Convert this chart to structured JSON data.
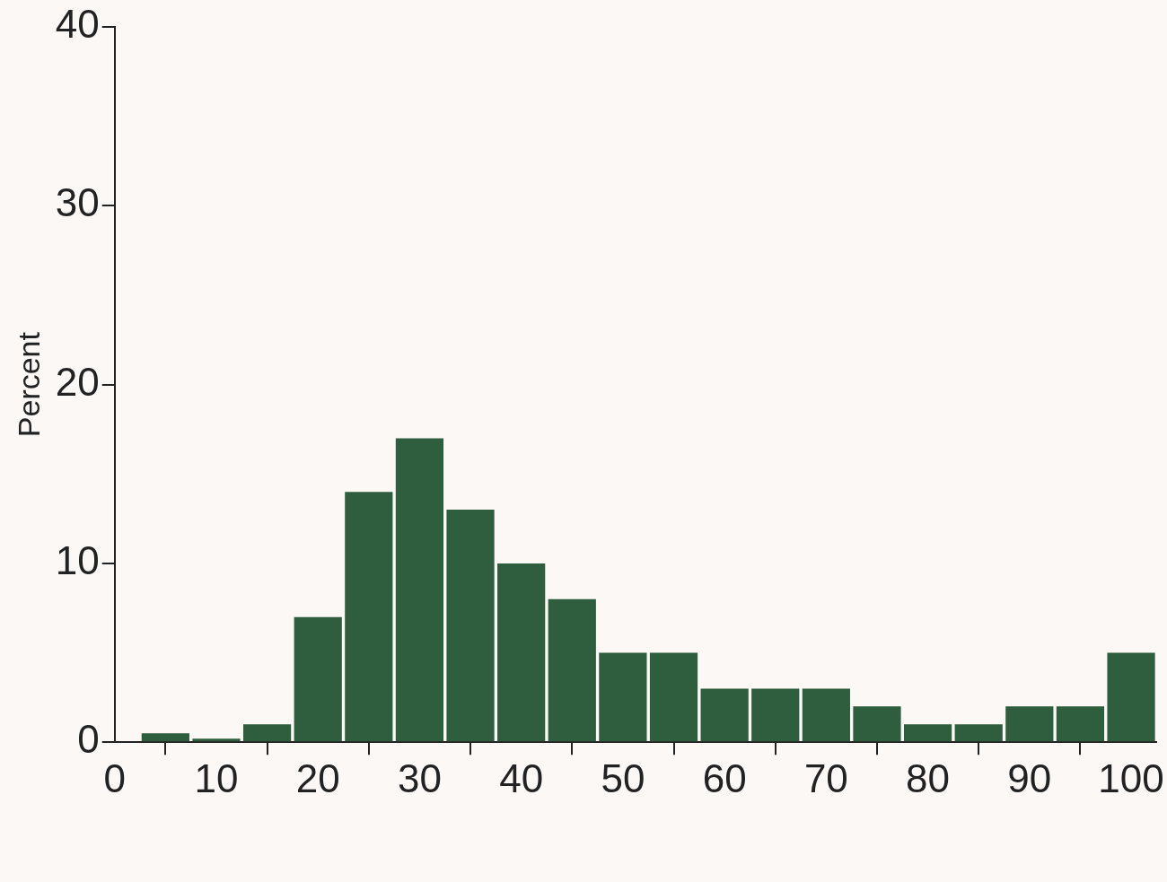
{
  "chart_data": {
    "type": "histogram",
    "ylabel": "Percent",
    "bins": [
      2.5,
      7.5,
      12.5,
      17.5,
      22.5,
      27.5,
      32.5,
      37.5,
      42.5,
      47.5,
      52.5,
      57.5,
      62.5,
      67.5,
      72.5,
      77.5,
      82.5,
      87.5,
      92.5,
      97.5,
      102.5
    ],
    "values": [
      0.5,
      0.2,
      1,
      7,
      14,
      17,
      13,
      10,
      8,
      5,
      5,
      3,
      3,
      3,
      2,
      1,
      1,
      2,
      2,
      5
    ],
    "color": "#2f5e3f",
    "xlim": [
      0,
      102.5
    ],
    "xticks": [
      0,
      10,
      20,
      30,
      40,
      50,
      60,
      70,
      80,
      90,
      100
    ],
    "ylim": [
      0,
      40
    ],
    "yticks": [
      0,
      10,
      20,
      30,
      40
    ],
    "grid": false
  }
}
